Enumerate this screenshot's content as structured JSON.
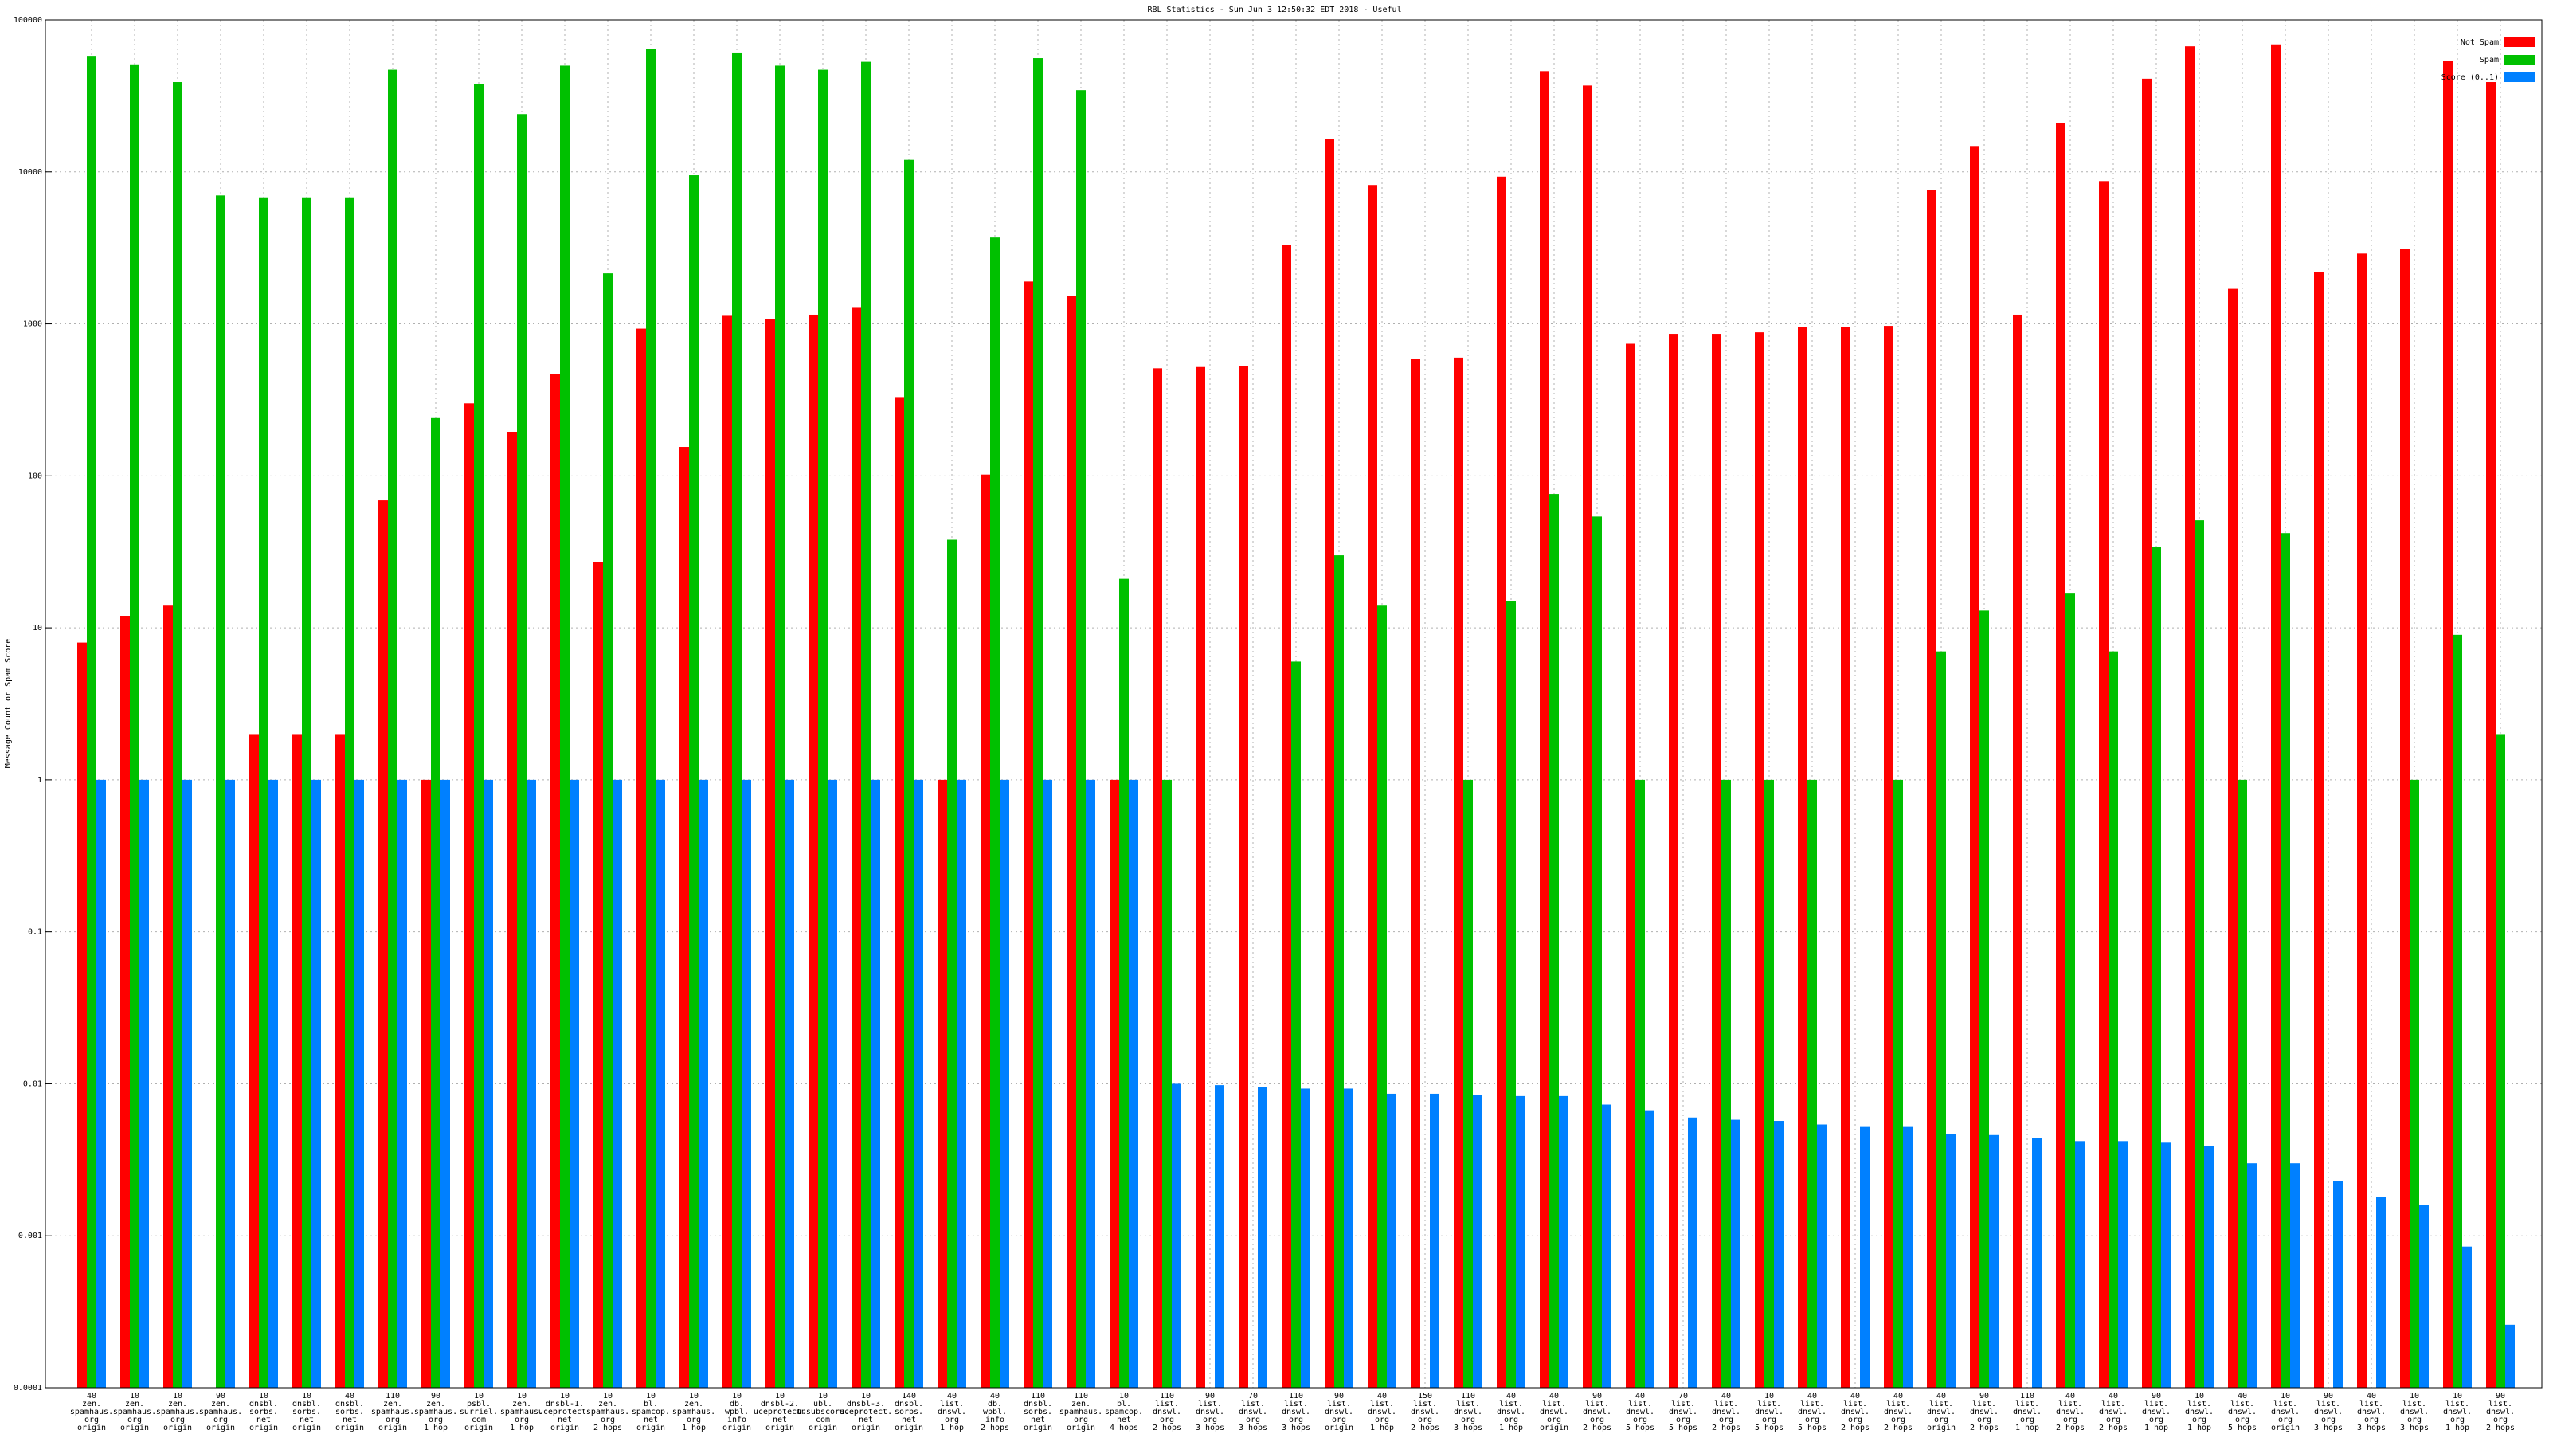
{
  "chart_data": {
    "type": "bar",
    "title": "RBL Statistics - Sun Jun  3 12:50:32 EDT 2018 - Useful",
    "y_label": "Message Count or Spam Score",
    "ylog": true,
    "grid": true,
    "legend": "top-right",
    "ylim": [
      0.0001,
      100000
    ],
    "yticks": [
      100000,
      10000,
      1000,
      100,
      10,
      1,
      0.1,
      0.01,
      0.001,
      0.0001
    ],
    "categories": [
      [
        "40",
        "zen.",
        "spamhaus.",
        "org",
        "origin"
      ],
      [
        "10",
        "zen.",
        "spamhaus.",
        "org",
        "origin"
      ],
      [
        "10",
        "zen.",
        "spamhaus.",
        "org",
        "origin"
      ],
      [
        "90",
        "zen.",
        "spamhaus.",
        "org",
        "origin"
      ],
      [
        "10",
        "dnsbl.",
        "sorbs.",
        "net",
        "origin"
      ],
      [
        "10",
        "dnsbl.",
        "sorbs.",
        "net",
        "origin"
      ],
      [
        "40",
        "dnsbl.",
        "sorbs.",
        "net",
        "origin"
      ],
      [
        "110",
        "zen.",
        "spamhaus.",
        "org",
        "origin"
      ],
      [
        "90",
        "zen.",
        "spamhaus.",
        "org",
        "1 hop"
      ],
      [
        "10",
        "psbl.",
        "surriel.",
        "com",
        "origin"
      ],
      [
        "10",
        "zen.",
        "spamhaus.",
        "org",
        "1 hop"
      ],
      [
        "10",
        "dnsbl-1.",
        "uceprotect.",
        "net",
        "origin"
      ],
      [
        "10",
        "zen.",
        "spamhaus.",
        "org",
        "2 hops"
      ],
      [
        "10",
        "bl.",
        "spamcop.",
        "net",
        "origin"
      ],
      [
        "10",
        "zen.",
        "spamhaus.",
        "org",
        "1 hop"
      ],
      [
        "10",
        "db.",
        "wpbl.",
        "info",
        "origin"
      ],
      [
        "10",
        "dnsbl-2.",
        "uceprotect.",
        "net",
        "origin"
      ],
      [
        "10",
        "ubl.",
        "unsubscore.",
        "com",
        "origin"
      ],
      [
        "10",
        "dnsbl-3.",
        "uceprotect.",
        "net",
        "origin"
      ],
      [
        "140",
        "dnsbl.",
        "sorbs.",
        "net",
        "origin"
      ],
      [
        "40",
        "list.",
        "dnswl.",
        "org",
        "1 hop"
      ],
      [
        "40",
        "db.",
        "wpbl.",
        "info",
        "2 hops"
      ],
      [
        "110",
        "dnsbl.",
        "sorbs.",
        "net",
        "origin"
      ],
      [
        "110",
        "zen.",
        "spamhaus.",
        "org",
        "origin"
      ],
      [
        "10",
        "bl.",
        "spamcop.",
        "net",
        "4 hops"
      ],
      [
        "110",
        "list.",
        "dnswl.",
        "org",
        "2 hops"
      ],
      [
        "90",
        "list.",
        "dnswl.",
        "org",
        "3 hops"
      ],
      [
        "70",
        "list.",
        "dnswl.",
        "org",
        "3 hops"
      ],
      [
        "110",
        "list.",
        "dnswl.",
        "org",
        "3 hops"
      ],
      [
        "90",
        "list.",
        "dnswl.",
        "org",
        "origin"
      ],
      [
        "40",
        "list.",
        "dnswl.",
        "org",
        "1 hop"
      ],
      [
        "150",
        "list.",
        "dnswl.",
        "org",
        "2 hops"
      ],
      [
        "110",
        "list.",
        "dnswl.",
        "org",
        "3 hops"
      ],
      [
        "40",
        "list.",
        "dnswl.",
        "org",
        "1 hop"
      ],
      [
        "40",
        "list.",
        "dnswl.",
        "org",
        "origin"
      ],
      [
        "90",
        "list.",
        "dnswl.",
        "org",
        "2 hops"
      ],
      [
        "40",
        "list.",
        "dnswl.",
        "org",
        "5 hops"
      ],
      [
        "70",
        "list.",
        "dnswl.",
        "org",
        "5 hops"
      ],
      [
        "40",
        "list.",
        "dnswl.",
        "org",
        "2 hops"
      ],
      [
        "10",
        "list.",
        "dnswl.",
        "org",
        "5 hops"
      ],
      [
        "40",
        "list.",
        "dnswl.",
        "org",
        "5 hops"
      ],
      [
        "40",
        "list.",
        "dnswl.",
        "org",
        "2 hops"
      ],
      [
        "40",
        "list.",
        "dnswl.",
        "org",
        "2 hops"
      ],
      [
        "40",
        "list.",
        "dnswl.",
        "org",
        "origin"
      ],
      [
        "90",
        "list.",
        "dnswl.",
        "org",
        "2 hops"
      ],
      [
        "110",
        "list.",
        "dnswl.",
        "org",
        "1 hop"
      ],
      [
        "40",
        "list.",
        "dnswl.",
        "org",
        "2 hops"
      ],
      [
        "40",
        "list.",
        "dnswl.",
        "org",
        "2 hops"
      ],
      [
        "90",
        "list.",
        "dnswl.",
        "org",
        "1 hop"
      ],
      [
        "10",
        "list.",
        "dnswl.",
        "org",
        "1 hop"
      ],
      [
        "40",
        "list.",
        "dnswl.",
        "org",
        "5 hops"
      ],
      [
        "10",
        "list.",
        "dnswl.",
        "org",
        "origin"
      ],
      [
        "90",
        "list.",
        "dnswl.",
        "org",
        "3 hops"
      ],
      [
        "40",
        "list.",
        "dnswl.",
        "org",
        "3 hops"
      ],
      [
        "10",
        "list.",
        "dnswl.",
        "org",
        "3 hops"
      ],
      [
        "10",
        "list.",
        "dnswl.",
        "org",
        "1 hop"
      ],
      [
        "90",
        "list.",
        "dnswl.",
        "org",
        "2 hops"
      ]
    ],
    "series": [
      {
        "name": "Not Spam",
        "color": "#ff0000",
        "values": [
          8,
          12,
          14,
          null,
          2,
          2,
          2,
          69,
          1,
          300,
          195,
          465,
          27,
          930,
          155,
          1130,
          1080,
          1150,
          1290,
          330,
          1,
          102,
          1900,
          1520,
          1,
          510,
          520,
          530,
          3300,
          16500,
          8200,
          590,
          600,
          9300,
          46000,
          37000,
          740,
          860,
          860,
          880,
          950,
          950,
          970,
          7600,
          14800,
          1150,
          21000,
          8700,
          41000,
          67000,
          1700,
          69000,
          2200,
          2900,
          3100,
          54000,
          39000
        ]
      },
      {
        "name": "Spam",
        "color": "#00c000",
        "values": [
          58000,
          51000,
          39000,
          7000,
          6800,
          6800,
          6800,
          47000,
          240,
          38000,
          24000,
          50000,
          2150,
          64000,
          9500,
          61000,
          50000,
          47000,
          53000,
          12000,
          38,
          3700,
          56000,
          34500,
          21,
          1,
          null,
          null,
          6,
          30,
          14,
          null,
          1,
          15,
          76,
          54,
          1,
          null,
          1,
          1,
          1,
          null,
          1,
          7,
          13,
          null,
          17,
          7,
          34,
          51,
          1,
          42,
          null,
          null,
          1,
          9,
          2
        ]
      },
      {
        "name": "Score (0..1)",
        "color": "#0080ff",
        "values": [
          1,
          1,
          1,
          1,
          1,
          1,
          1,
          1,
          1,
          1,
          1,
          1,
          1,
          1,
          1,
          1,
          1,
          1,
          1,
          1,
          1,
          1,
          1,
          1,
          1,
          0.01,
          0.0098,
          0.0095,
          0.0093,
          0.0093,
          0.0086,
          0.0086,
          0.0084,
          0.0083,
          0.0083,
          0.0073,
          0.0067,
          0.006,
          0.0058,
          0.0057,
          0.0054,
          0.0052,
          0.0052,
          0.0047,
          0.0046,
          0.0044,
          0.0042,
          0.0042,
          0.0041,
          0.0039,
          0.003,
          0.003,
          0.0023,
          0.0018,
          0.0016,
          0.00085,
          0.00026
        ]
      }
    ]
  }
}
